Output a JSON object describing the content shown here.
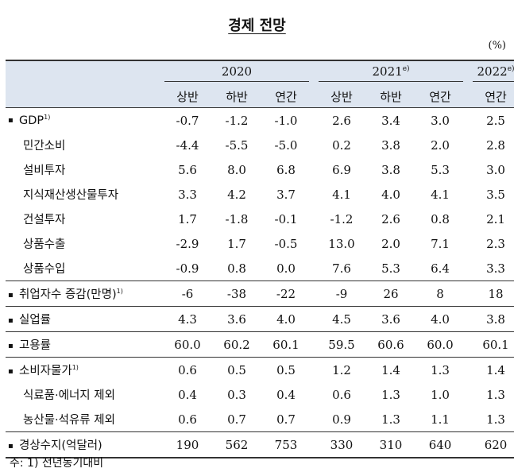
{
  "title": "경제 전망",
  "unit": "(%)",
  "years": [
    {
      "label": "2020",
      "sup": ""
    },
    {
      "label": "2021",
      "sup": "e)"
    },
    {
      "label": "2022",
      "sup": "e)"
    }
  ],
  "subheaders": [
    "상반",
    "하반",
    "연간",
    "상반",
    "하반",
    "연간",
    "연간"
  ],
  "rows": [
    {
      "label": "GDP",
      "sup": "1)",
      "bullet": true,
      "values": [
        "-0.7",
        "-1.2",
        "-1.0",
        "2.6",
        "3.4",
        "3.0",
        "2.5"
      ]
    },
    {
      "label": "민간소비",
      "sup": "",
      "bullet": false,
      "values": [
        "-4.4",
        "-5.5",
        "-5.0",
        "0.2",
        "3.8",
        "2.0",
        "2.8"
      ]
    },
    {
      "label": "설비투자",
      "sup": "",
      "bullet": false,
      "values": [
        "5.6",
        "8.0",
        "6.8",
        "6.9",
        "3.8",
        "5.3",
        "3.0"
      ]
    },
    {
      "label": "지식재산생산물투자",
      "sup": "",
      "bullet": false,
      "values": [
        "3.3",
        "4.2",
        "3.7",
        "4.1",
        "4.0",
        "4.1",
        "3.5"
      ]
    },
    {
      "label": "건설투자",
      "sup": "",
      "bullet": false,
      "values": [
        "1.7",
        "-1.8",
        "-0.1",
        "-1.2",
        "2.6",
        "0.8",
        "2.1"
      ]
    },
    {
      "label": "상품수출",
      "sup": "",
      "bullet": false,
      "values": [
        "-2.9",
        "1.7",
        "-0.5",
        "13.0",
        "2.0",
        "7.1",
        "2.3"
      ]
    },
    {
      "label": "상품수입",
      "sup": "",
      "bullet": false,
      "values": [
        "-0.9",
        "0.8",
        "0.0",
        "7.6",
        "5.3",
        "6.4",
        "3.3"
      ]
    },
    {
      "label": "취업자수 증감(만명)",
      "sup": "1)",
      "bullet": true,
      "values": [
        "-6",
        "-38",
        "-22",
        "-9",
        "26",
        "8",
        "18"
      ]
    },
    {
      "label": "실업률",
      "sup": "",
      "bullet": true,
      "values": [
        "4.3",
        "3.6",
        "4.0",
        "4.5",
        "3.6",
        "4.0",
        "3.8"
      ]
    },
    {
      "label": "고용률",
      "sup": "",
      "bullet": true,
      "values": [
        "60.0",
        "60.2",
        "60.1",
        "59.5",
        "60.6",
        "60.0",
        "60.1"
      ]
    },
    {
      "label": "소비자물가",
      "sup": "1)",
      "bullet": true,
      "values": [
        "0.6",
        "0.5",
        "0.5",
        "1.2",
        "1.4",
        "1.3",
        "1.4"
      ]
    },
    {
      "label": "식료품·에너지 제외",
      "sup": "",
      "bullet": false,
      "values": [
        "0.4",
        "0.3",
        "0.4",
        "0.6",
        "1.3",
        "1.0",
        "1.3"
      ]
    },
    {
      "label": "농산물·석유류 제외",
      "sup": "",
      "bullet": false,
      "values": [
        "0.6",
        "0.7",
        "0.7",
        "0.9",
        "1.3",
        "1.1",
        "1.3"
      ]
    },
    {
      "label": "경상수지(억달러)",
      "sup": "",
      "bullet": true,
      "values": [
        "190",
        "562",
        "753",
        "330",
        "310",
        "640",
        "620"
      ]
    }
  ],
  "footnote": "주: 1) 전년동기대비"
}
